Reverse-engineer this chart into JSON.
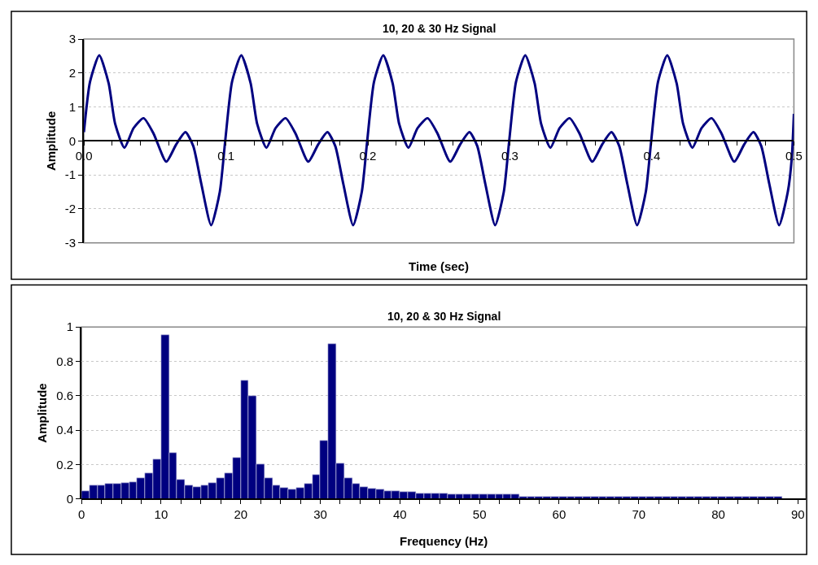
{
  "chart_data": [
    {
      "type": "line",
      "title": "10, 20 & 30 Hz Signal",
      "xlabel": "Time (sec)",
      "ylabel": "Amplitude",
      "color": "#000080",
      "grid": "y",
      "x": [
        0,
        0.0043,
        0.0108,
        0.0174,
        0.022,
        0.0285,
        0.035,
        0.042,
        0.049,
        0.058,
        0.065,
        0.0715,
        0.077,
        0.0826,
        0.0896,
        0.0957,
        0.0995,
        0.1043,
        0.1108,
        0.1174,
        0.122,
        0.1285,
        0.135,
        0.142,
        0.149,
        0.158,
        0.165,
        0.1715,
        0.177,
        0.1826,
        0.1896,
        0.1957,
        0.1995,
        0.2043,
        0.2108,
        0.2174,
        0.222,
        0.2285,
        0.235,
        0.242,
        0.249,
        0.258,
        0.265,
        0.2715,
        0.277,
        0.2826,
        0.2896,
        0.2957,
        0.2995,
        0.3043,
        0.3108,
        0.3174,
        0.322,
        0.3285,
        0.335,
        0.342,
        0.349,
        0.358,
        0.365,
        0.3715,
        0.377,
        0.3826,
        0.3896,
        0.3957,
        0.3995,
        0.4043,
        0.4108,
        0.4174,
        0.422,
        0.4285,
        0.435,
        0.442,
        0.449,
        0.458,
        0.465,
        0.4715,
        0.477,
        0.4826,
        0.4896,
        0.4957,
        0.4985,
        0.5
      ],
      "values": [
        0.26,
        1.74,
        2.52,
        1.7,
        0.5,
        -0.2,
        0.38,
        0.67,
        0.22,
        -0.61,
        -0.1,
        0.26,
        -0.15,
        -1.25,
        -2.48,
        -1.5,
        0,
        1.74,
        2.52,
        1.7,
        0.5,
        -0.2,
        0.38,
        0.67,
        0.22,
        -0.61,
        -0.1,
        0.26,
        -0.15,
        -1.25,
        -2.48,
        -1.5,
        0,
        1.74,
        2.52,
        1.7,
        0.5,
        -0.2,
        0.38,
        0.67,
        0.22,
        -0.61,
        -0.1,
        0.26,
        -0.15,
        -1.25,
        -2.48,
        -1.5,
        0,
        1.74,
        2.52,
        1.7,
        0.5,
        -0.2,
        0.38,
        0.67,
        0.22,
        -0.61,
        -0.1,
        0.26,
        -0.15,
        -1.25,
        -2.48,
        -1.5,
        0,
        1.74,
        2.52,
        1.7,
        0.5,
        -0.2,
        0.38,
        0.67,
        0.22,
        -0.61,
        -0.1,
        0.26,
        -0.15,
        -1.25,
        -2.48,
        -1.5,
        -0.5,
        0.8
      ],
      "xlim": [
        0,
        0.5
      ],
      "ylim": [
        -3,
        3
      ],
      "xticks": [
        {
          "value": 0,
          "label": "0.0"
        },
        {
          "value": 0.02,
          "label": null
        },
        {
          "value": 0.04,
          "label": null
        },
        {
          "value": 0.06,
          "label": null
        },
        {
          "value": 0.08,
          "label": null
        },
        0.1,
        {
          "value": 0.12,
          "label": null
        },
        {
          "value": 0.14,
          "label": null
        },
        {
          "value": 0.16,
          "label": null
        },
        {
          "value": 0.18,
          "label": null
        },
        0.2,
        {
          "value": 0.22,
          "label": null
        },
        {
          "value": 0.24,
          "label": null
        },
        {
          "value": 0.26,
          "label": null
        },
        {
          "value": 0.28,
          "label": null
        },
        0.3,
        {
          "value": 0.32,
          "label": null
        },
        {
          "value": 0.34,
          "label": null
        },
        {
          "value": 0.36,
          "label": null
        },
        {
          "value": 0.38,
          "label": null
        },
        0.4,
        {
          "value": 0.42,
          "label": null
        },
        {
          "value": 0.44,
          "label": null
        },
        {
          "value": 0.46,
          "label": null
        },
        {
          "value": 0.48,
          "label": null
        },
        0.5
      ],
      "yticks": [
        -3,
        -2,
        -1,
        0,
        1,
        2,
        3
      ]
    },
    {
      "type": "bar",
      "title": "10, 20 & 30 Hz Signal",
      "xlabel": "Frequency (Hz)",
      "ylabel": "Amplitude",
      "color": "#000080",
      "grid": "y",
      "x": [
        0.5,
        1.5,
        2.5,
        3.5,
        4.5,
        5.5,
        6.5,
        7.5,
        8.5,
        9.5,
        10.5,
        11.5,
        12.5,
        13.5,
        14.5,
        15.5,
        16.5,
        17.5,
        18.5,
        19.5,
        20.5,
        21.5,
        22.5,
        23.5,
        24.5,
        25.5,
        26.5,
        27.5,
        28.5,
        29.5,
        30.5,
        31.5,
        32.5,
        33.5,
        34.5,
        35.5,
        36.5,
        37.5,
        38.5,
        39.5,
        40.5,
        41.5,
        42.5,
        43.5,
        44.5,
        45.5,
        46.5,
        47.5,
        48.5,
        49.5,
        50.5,
        51.5,
        52.5,
        53.5,
        54.5,
        55.5,
        56.5,
        57.5,
        58.5,
        59.5,
        60.5,
        61.5,
        62.5,
        63.5,
        64.5,
        65.5,
        66.5,
        67.5,
        68.5,
        69.5,
        70.5,
        71.5,
        72.5,
        73.5,
        74.5,
        75.5,
        76.5,
        77.5,
        78.5,
        79.5,
        80.5,
        81.5,
        82.5,
        83.5,
        84.5,
        85.5,
        86.5,
        87.5
      ],
      "values": [
        0.048,
        0.08,
        0.08,
        0.087,
        0.087,
        0.095,
        0.1,
        0.12,
        0.15,
        0.23,
        0.955,
        0.27,
        0.11,
        0.08,
        0.07,
        0.08,
        0.095,
        0.12,
        0.15,
        0.24,
        0.69,
        0.6,
        0.2,
        0.12,
        0.08,
        0.065,
        0.055,
        0.065,
        0.087,
        0.14,
        0.34,
        0.9,
        0.205,
        0.12,
        0.09,
        0.07,
        0.06,
        0.053,
        0.046,
        0.046,
        0.039,
        0.039,
        0.032,
        0.032,
        0.032,
        0.032,
        0.026,
        0.026,
        0.026,
        0.026,
        0.026,
        0.026,
        0.026,
        0.026,
        0.026,
        0.014,
        0.014,
        0.014,
        0.014,
        0.014,
        0.014,
        0.014,
        0.014,
        0.014,
        0.014,
        0.014,
        0.014,
        0.014,
        0.014,
        0.014,
        0.014,
        0.014,
        0.014,
        0.014,
        0.014,
        0.014,
        0.014,
        0.014,
        0.014,
        0.014,
        0.014,
        0.014,
        0.014,
        0.014,
        0.014,
        0.014,
        0.014,
        0.014
      ],
      "xlim": [
        0,
        91
      ],
      "ylim": [
        0,
        1
      ],
      "xticks": [
        0,
        {
          "value": 2.5,
          "label": null
        },
        {
          "value": 5,
          "label": null
        },
        {
          "value": 7.5,
          "label": null
        },
        10,
        {
          "value": 12.5,
          "label": null
        },
        {
          "value": 15,
          "label": null
        },
        {
          "value": 17.5,
          "label": null
        },
        20,
        {
          "value": 22.5,
          "label": null
        },
        {
          "value": 25,
          "label": null
        },
        {
          "value": 27.5,
          "label": null
        },
        30,
        {
          "value": 32.5,
          "label": null
        },
        {
          "value": 35,
          "label": null
        },
        {
          "value": 37.5,
          "label": null
        },
        40,
        {
          "value": 42.5,
          "label": null
        },
        {
          "value": 45,
          "label": null
        },
        {
          "value": 47.5,
          "label": null
        },
        50,
        {
          "value": 52.5,
          "label": null
        },
        {
          "value": 55,
          "label": null
        },
        {
          "value": 57.5,
          "label": null
        },
        60,
        {
          "value": 62.5,
          "label": null
        },
        {
          "value": 65,
          "label": null
        },
        {
          "value": 67.5,
          "label": null
        },
        70,
        {
          "value": 72.5,
          "label": null
        },
        {
          "value": 75,
          "label": null
        },
        {
          "value": 77.5,
          "label": null
        },
        80,
        {
          "value": 82.5,
          "label": null
        },
        {
          "value": 85,
          "label": null
        },
        {
          "value": 87.5,
          "label": null
        },
        90
      ],
      "yticks": [
        0,
        0.2,
        0.4,
        0.6,
        0.8,
        1
      ]
    }
  ]
}
